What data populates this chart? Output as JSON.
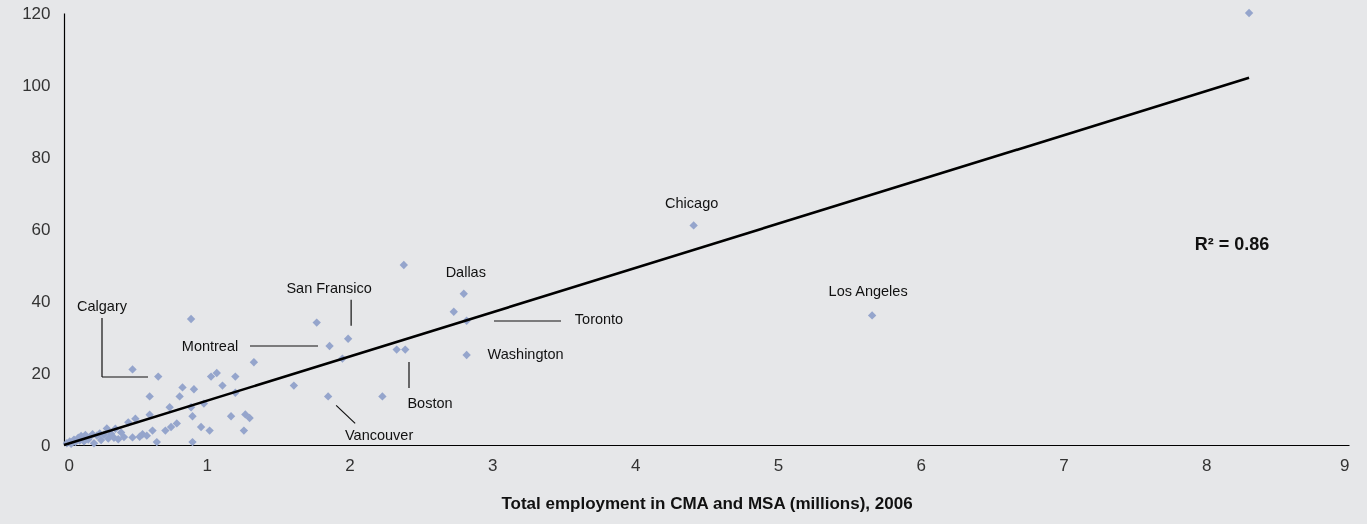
{
  "chart_data": {
    "type": "scatter",
    "xlabel": "Total employment in CMA and MSA (millions), 2006",
    "xlim": [
      0,
      9
    ],
    "xticks": [
      0,
      1,
      2,
      3,
      4,
      5,
      6,
      7,
      8,
      9
    ],
    "ylim": [
      0,
      120
    ],
    "yticks": [
      0,
      20,
      40,
      60,
      80,
      100,
      120
    ],
    "grid": false,
    "series": [
      {
        "color": "#95a5cc",
        "marker": "diamond",
        "x": [
          0.02,
          0.04,
          0.05,
          0.07,
          0.08,
          0.1,
          0.11,
          0.12,
          0.14,
          0.15,
          0.17,
          0.18,
          0.2,
          0.21,
          0.23,
          0.25,
          0.26,
          0.28,
          0.3,
          0.31,
          0.33,
          0.35,
          0.36,
          0.38,
          0.4,
          0.42,
          0.45,
          0.48,
          0.5,
          0.53,
          0.55,
          0.58,
          0.6,
          0.62,
          0.89,
          0.48,
          0.66,
          0.6,
          1.77,
          1.99,
          1.86,
          1.95,
          1.33,
          2.33,
          2.39,
          1.61,
          1.85,
          2.23,
          1.03,
          1.07,
          1.2,
          1.11,
          1.2,
          0.83,
          0.91,
          0.81,
          0.98,
          0.89,
          0.9,
          0.74,
          1.17,
          1.27,
          1.3,
          0.96,
          1.02,
          1.26,
          0.79,
          0.71,
          0.75,
          0.65,
          0.9,
          2.38,
          2.8,
          2.73,
          2.82,
          2.82,
          4.41,
          5.66,
          8.3
        ],
        "values": [
          0.5,
          1,
          0.3,
          1.5,
          0.8,
          2,
          1.2,
          2.5,
          1,
          2.8,
          1.5,
          2.2,
          3,
          0.5,
          2.6,
          3.2,
          1.4,
          2.9,
          4.6,
          1.8,
          3.1,
          2,
          4.5,
          1.6,
          3.5,
          2.2,
          6.3,
          2.1,
          7.3,
          2.3,
          3,
          2.6,
          8.4,
          4,
          35,
          21,
          19,
          13.5,
          34,
          29.5,
          27.5,
          24,
          23,
          26.5,
          26.5,
          16.5,
          13.5,
          13.5,
          19,
          20,
          19,
          16.5,
          14.5,
          16,
          15.5,
          13.5,
          11.5,
          10.5,
          8,
          10.5,
          8,
          8.5,
          7.5,
          5,
          4,
          4,
          6,
          4,
          5,
          0.8,
          0.8,
          50,
          42,
          37,
          34.5,
          25,
          61,
          36,
          120
        ]
      },
      {
        "type": "line",
        "color": "#000000",
        "marker": "none",
        "x": [
          0,
          8.3
        ],
        "values": [
          0,
          102
        ]
      }
    ],
    "annotations": [
      "Calgary",
      "Montreal",
      {
        "text": "San Fransico",
        "x": 1.99,
        "y": 29.5
      },
      {
        "text": "Vancouver",
        "x": 1.85,
        "y": 13.5
      },
      "Boston",
      {
        "text": "Dallas",
        "x": 2.8,
        "y": 42
      },
      "Toronto",
      {
        "text": "Washington",
        "x": 2.82,
        "y": 25
      },
      {
        "text": "Chicago",
        "x": 4.41,
        "y": 61
      },
      {
        "text": "Los Angeles",
        "x": 5.66,
        "y": 36
      },
      "R² = 0.86"
    ]
  }
}
